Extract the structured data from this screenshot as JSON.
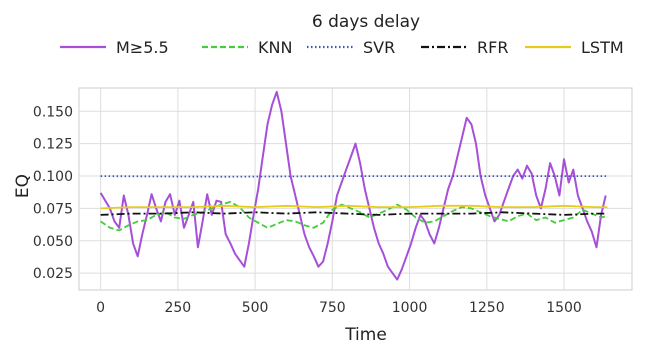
{
  "chart_data": {
    "type": "line",
    "title": "6 days delay",
    "xlabel": "Time",
    "ylabel": "EQ",
    "xlim": [
      -70,
      1720
    ],
    "ylim": [
      0.012,
      0.168
    ],
    "xticks": [
      0,
      250,
      500,
      750,
      1000,
      1250,
      1500
    ],
    "yticks": [
      0.025,
      0.05,
      0.075,
      0.1,
      0.125,
      0.15
    ],
    "ytick_labels": [
      "0.025",
      "0.050",
      "0.075",
      "0.100",
      "0.125",
      "0.150"
    ],
    "grid": true,
    "legend_position": "top",
    "series": [
      {
        "name": "M≥5.5",
        "color": "#a64fd9",
        "style": "solid",
        "x": [
          0,
          15,
          30,
          45,
          60,
          75,
          90,
          105,
          120,
          135,
          150,
          165,
          180,
          195,
          210,
          225,
          240,
          255,
          270,
          285,
          300,
          315,
          330,
          345,
          360,
          375,
          390,
          405,
          420,
          435,
          450,
          465,
          480,
          495,
          510,
          525,
          540,
          555,
          570,
          585,
          600,
          615,
          630,
          645,
          660,
          675,
          690,
          705,
          720,
          735,
          750,
          765,
          780,
          795,
          810,
          825,
          840,
          855,
          870,
          885,
          900,
          915,
          930,
          945,
          960,
          975,
          990,
          1005,
          1020,
          1035,
          1050,
          1065,
          1080,
          1095,
          1110,
          1125,
          1140,
          1155,
          1170,
          1185,
          1200,
          1215,
          1230,
          1245,
          1260,
          1275,
          1290,
          1305,
          1320,
          1335,
          1350,
          1365,
          1380,
          1395,
          1410,
          1425,
          1440,
          1455,
          1470,
          1485,
          1500,
          1515,
          1530,
          1545,
          1560,
          1575,
          1590,
          1605,
          1620,
          1635
        ],
        "y": [
          0.087,
          0.081,
          0.075,
          0.065,
          0.06,
          0.085,
          0.07,
          0.048,
          0.038,
          0.055,
          0.07,
          0.086,
          0.075,
          0.065,
          0.08,
          0.086,
          0.07,
          0.081,
          0.06,
          0.07,
          0.08,
          0.045,
          0.065,
          0.086,
          0.07,
          0.081,
          0.08,
          0.055,
          0.048,
          0.04,
          0.035,
          0.03,
          0.048,
          0.07,
          0.09,
          0.115,
          0.14,
          0.155,
          0.165,
          0.15,
          0.125,
          0.1,
          0.085,
          0.07,
          0.055,
          0.045,
          0.038,
          0.03,
          0.034,
          0.048,
          0.065,
          0.085,
          0.095,
          0.105,
          0.115,
          0.125,
          0.11,
          0.09,
          0.075,
          0.06,
          0.048,
          0.04,
          0.03,
          0.025,
          0.02,
          0.028,
          0.038,
          0.048,
          0.06,
          0.07,
          0.065,
          0.055,
          0.048,
          0.06,
          0.075,
          0.09,
          0.1,
          0.115,
          0.13,
          0.145,
          0.14,
          0.125,
          0.1,
          0.085,
          0.075,
          0.065,
          0.07,
          0.08,
          0.09,
          0.1,
          0.105,
          0.098,
          0.108,
          0.102,
          0.085,
          0.075,
          0.09,
          0.11,
          0.1,
          0.085,
          0.113,
          0.095,
          0.105,
          0.085,
          0.075,
          0.065,
          0.057,
          0.045,
          0.07,
          0.085
        ]
      },
      {
        "name": "KNN",
        "color": "#44cc3a",
        "style": "dashed",
        "x": [
          0,
          30,
          60,
          90,
          120,
          150,
          180,
          210,
          240,
          270,
          300,
          330,
          360,
          390,
          420,
          450,
          480,
          510,
          540,
          570,
          600,
          630,
          660,
          690,
          720,
          750,
          780,
          810,
          840,
          870,
          900,
          930,
          960,
          990,
          1020,
          1050,
          1080,
          1110,
          1140,
          1170,
          1200,
          1230,
          1260,
          1290,
          1320,
          1350,
          1380,
          1410,
          1440,
          1470,
          1500,
          1530,
          1560,
          1590,
          1620,
          1635
        ],
        "y": [
          0.065,
          0.06,
          0.058,
          0.062,
          0.065,
          0.066,
          0.07,
          0.072,
          0.068,
          0.067,
          0.07,
          0.072,
          0.075,
          0.078,
          0.08,
          0.076,
          0.068,
          0.064,
          0.06,
          0.063,
          0.066,
          0.065,
          0.062,
          0.06,
          0.064,
          0.074,
          0.078,
          0.075,
          0.072,
          0.068,
          0.071,
          0.074,
          0.078,
          0.074,
          0.068,
          0.064,
          0.065,
          0.069,
          0.073,
          0.076,
          0.075,
          0.072,
          0.069,
          0.067,
          0.065,
          0.069,
          0.071,
          0.066,
          0.068,
          0.064,
          0.066,
          0.068,
          0.074,
          0.071,
          0.068,
          0.069
        ]
      },
      {
        "name": "SVR",
        "color": "#3355cc",
        "style": "dotted",
        "x": [
          0,
          400,
          800,
          1200,
          1640
        ],
        "y": [
          0.1,
          0.0995,
          0.1,
          0.1,
          0.1
        ]
      },
      {
        "name": "RFR",
        "color": "#111111",
        "style": "dashdot",
        "x": [
          0,
          100,
          200,
          300,
          400,
          500,
          600,
          700,
          800,
          900,
          1000,
          1100,
          1200,
          1300,
          1400,
          1500,
          1600,
          1640
        ],
        "y": [
          0.07,
          0.071,
          0.071,
          0.072,
          0.071,
          0.072,
          0.071,
          0.072,
          0.071,
          0.07,
          0.071,
          0.071,
          0.071,
          0.072,
          0.071,
          0.07,
          0.071,
          0.071
        ]
      },
      {
        "name": "LSTM",
        "color": "#e8cc1c",
        "style": "solid",
        "x": [
          0,
          100,
          200,
          300,
          400,
          500,
          600,
          700,
          800,
          900,
          1000,
          1100,
          1200,
          1300,
          1400,
          1500,
          1600,
          1640
        ],
        "y": [
          0.075,
          0.076,
          0.076,
          0.076,
          0.077,
          0.076,
          0.077,
          0.076,
          0.077,
          0.076,
          0.076,
          0.077,
          0.077,
          0.076,
          0.076,
          0.077,
          0.076,
          0.076
        ]
      }
    ]
  }
}
